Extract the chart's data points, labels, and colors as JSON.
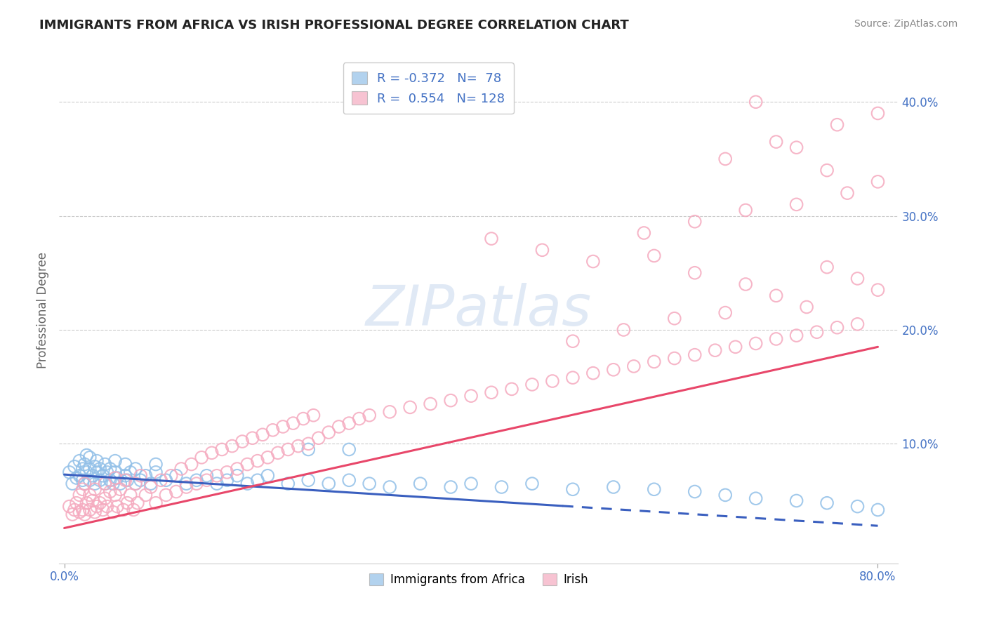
{
  "title": "IMMIGRANTS FROM AFRICA VS IRISH PROFESSIONAL DEGREE CORRELATION CHART",
  "source_text": "Source: ZipAtlas.com",
  "ylabel": "Professional Degree",
  "xlim": [
    -0.005,
    0.82
  ],
  "ylim": [
    -0.005,
    0.44
  ],
  "xtick_positions": [
    0.0,
    0.8
  ],
  "xticklabels": [
    "0.0%",
    "80.0%"
  ],
  "ytick_positions": [
    0.1,
    0.2,
    0.3,
    0.4
  ],
  "yticklabels": [
    "10.0%",
    "20.0%",
    "30.0%",
    "40.0%"
  ],
  "legend_R_blue": "-0.372",
  "legend_N_blue": "78",
  "legend_R_pink": "0.554",
  "legend_N_pink": "128",
  "legend_label_blue": "Immigrants from Africa",
  "legend_label_pink": "Irish",
  "blue_color": "#92C0E8",
  "pink_color": "#F5AABF",
  "blue_line_color": "#3A5FBF",
  "pink_line_color": "#E8476A",
  "title_color": "#222222",
  "axis_label_color": "#4472C4",
  "watermark": "ZIPatlas",
  "background_color": "#FFFFFF",
  "blue_trend": [
    0.0,
    0.8,
    0.073,
    0.028
  ],
  "blue_trend_solid": [
    0.0,
    0.49
  ],
  "blue_trend_dashed": [
    0.49,
    0.8
  ],
  "pink_trend": [
    0.0,
    0.8,
    0.026,
    0.185
  ],
  "blue_scatter_x": [
    0.005,
    0.008,
    0.01,
    0.012,
    0.015,
    0.015,
    0.018,
    0.018,
    0.02,
    0.02,
    0.022,
    0.022,
    0.025,
    0.025,
    0.025,
    0.028,
    0.03,
    0.03,
    0.032,
    0.032,
    0.035,
    0.035,
    0.038,
    0.04,
    0.04,
    0.042,
    0.045,
    0.045,
    0.048,
    0.05,
    0.05,
    0.052,
    0.055,
    0.06,
    0.06,
    0.062,
    0.065,
    0.07,
    0.07,
    0.075,
    0.08,
    0.085,
    0.09,
    0.09,
    0.1,
    0.11,
    0.12,
    0.13,
    0.14,
    0.15,
    0.16,
    0.17,
    0.18,
    0.19,
    0.2,
    0.22,
    0.24,
    0.26,
    0.28,
    0.3,
    0.32,
    0.35,
    0.38,
    0.4,
    0.43,
    0.46,
    0.5,
    0.54,
    0.58,
    0.62,
    0.65,
    0.68,
    0.72,
    0.75,
    0.78,
    0.8,
    0.24,
    0.28
  ],
  "blue_scatter_y": [
    0.075,
    0.065,
    0.08,
    0.07,
    0.072,
    0.085,
    0.068,
    0.078,
    0.065,
    0.082,
    0.075,
    0.09,
    0.068,
    0.078,
    0.088,
    0.072,
    0.065,
    0.08,
    0.075,
    0.085,
    0.068,
    0.078,
    0.072,
    0.065,
    0.082,
    0.075,
    0.068,
    0.078,
    0.065,
    0.075,
    0.085,
    0.07,
    0.065,
    0.072,
    0.082,
    0.068,
    0.075,
    0.065,
    0.078,
    0.068,
    0.072,
    0.065,
    0.075,
    0.082,
    0.068,
    0.072,
    0.065,
    0.068,
    0.072,
    0.065,
    0.068,
    0.072,
    0.065,
    0.068,
    0.072,
    0.065,
    0.068,
    0.065,
    0.068,
    0.065,
    0.062,
    0.065,
    0.062,
    0.065,
    0.062,
    0.065,
    0.06,
    0.062,
    0.06,
    0.058,
    0.055,
    0.052,
    0.05,
    0.048,
    0.045,
    0.042,
    0.095,
    0.095
  ],
  "pink_scatter_x": [
    0.005,
    0.008,
    0.01,
    0.012,
    0.015,
    0.015,
    0.018,
    0.018,
    0.02,
    0.02,
    0.022,
    0.025,
    0.025,
    0.028,
    0.03,
    0.03,
    0.032,
    0.035,
    0.038,
    0.04,
    0.04,
    0.042,
    0.045,
    0.048,
    0.05,
    0.05,
    0.052,
    0.055,
    0.058,
    0.06,
    0.062,
    0.065,
    0.068,
    0.07,
    0.072,
    0.075,
    0.08,
    0.085,
    0.09,
    0.095,
    0.1,
    0.105,
    0.11,
    0.115,
    0.12,
    0.125,
    0.13,
    0.135,
    0.14,
    0.145,
    0.15,
    0.155,
    0.16,
    0.165,
    0.17,
    0.175,
    0.18,
    0.185,
    0.19,
    0.195,
    0.2,
    0.205,
    0.21,
    0.215,
    0.22,
    0.225,
    0.23,
    0.235,
    0.24,
    0.245,
    0.25,
    0.26,
    0.27,
    0.28,
    0.29,
    0.3,
    0.32,
    0.34,
    0.36,
    0.38,
    0.4,
    0.42,
    0.44,
    0.46,
    0.48,
    0.5,
    0.52,
    0.54,
    0.56,
    0.58,
    0.6,
    0.62,
    0.64,
    0.66,
    0.68,
    0.7,
    0.72,
    0.74,
    0.76,
    0.78,
    0.5,
    0.55,
    0.6,
    0.65,
    0.58,
    0.62,
    0.67,
    0.7,
    0.73,
    0.75,
    0.78,
    0.8,
    0.42,
    0.47,
    0.52,
    0.57,
    0.62,
    0.67,
    0.72,
    0.77,
    0.8,
    0.65,
    0.7,
    0.75,
    0.68,
    0.72,
    0.76,
    0.8
  ],
  "pink_scatter_y": [
    0.045,
    0.038,
    0.042,
    0.048,
    0.04,
    0.055,
    0.042,
    0.06,
    0.038,
    0.065,
    0.048,
    0.042,
    0.055,
    0.05,
    0.04,
    0.06,
    0.045,
    0.048,
    0.042,
    0.052,
    0.065,
    0.045,
    0.058,
    0.04,
    0.055,
    0.07,
    0.045,
    0.06,
    0.042,
    0.068,
    0.048,
    0.055,
    0.042,
    0.065,
    0.048,
    0.072,
    0.055,
    0.062,
    0.048,
    0.068,
    0.055,
    0.072,
    0.058,
    0.078,
    0.062,
    0.082,
    0.065,
    0.088,
    0.068,
    0.092,
    0.072,
    0.095,
    0.075,
    0.098,
    0.078,
    0.102,
    0.082,
    0.105,
    0.085,
    0.108,
    0.088,
    0.112,
    0.092,
    0.115,
    0.095,
    0.118,
    0.098,
    0.122,
    0.1,
    0.125,
    0.105,
    0.11,
    0.115,
    0.118,
    0.122,
    0.125,
    0.128,
    0.132,
    0.135,
    0.138,
    0.142,
    0.145,
    0.148,
    0.152,
    0.155,
    0.158,
    0.162,
    0.165,
    0.168,
    0.172,
    0.175,
    0.178,
    0.182,
    0.185,
    0.188,
    0.192,
    0.195,
    0.198,
    0.202,
    0.205,
    0.19,
    0.2,
    0.21,
    0.215,
    0.265,
    0.25,
    0.24,
    0.23,
    0.22,
    0.255,
    0.245,
    0.235,
    0.28,
    0.27,
    0.26,
    0.285,
    0.295,
    0.305,
    0.31,
    0.32,
    0.33,
    0.35,
    0.365,
    0.34,
    0.4,
    0.36,
    0.38,
    0.39
  ]
}
